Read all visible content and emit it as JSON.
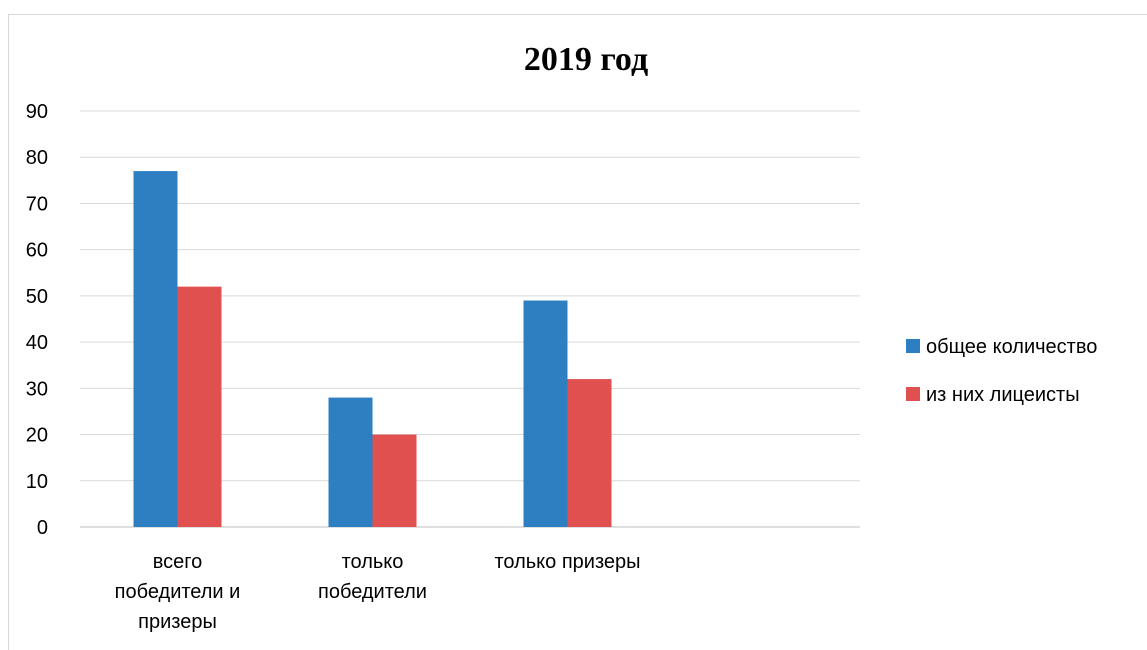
{
  "chart_data": {
    "type": "bar",
    "title": "2019 год",
    "categories": [
      [
        "всего",
        "победители и",
        "призеры"
      ],
      [
        "только",
        "победители"
      ],
      [
        "только призеры"
      ],
      [
        ""
      ]
    ],
    "series": [
      {
        "name": "общее количество",
        "color": "#2e7fc2",
        "values": [
          77,
          28,
          49,
          null
        ]
      },
      {
        "name": "из них лицеисты",
        "color": "#e0504e",
        "values": [
          52,
          20,
          32,
          null
        ]
      }
    ],
    "ylim": [
      0,
      90
    ],
    "yticks": [
      0,
      10,
      20,
      30,
      40,
      50,
      60,
      70,
      80,
      90
    ],
    "grid": true,
    "legend_position": "right"
  }
}
